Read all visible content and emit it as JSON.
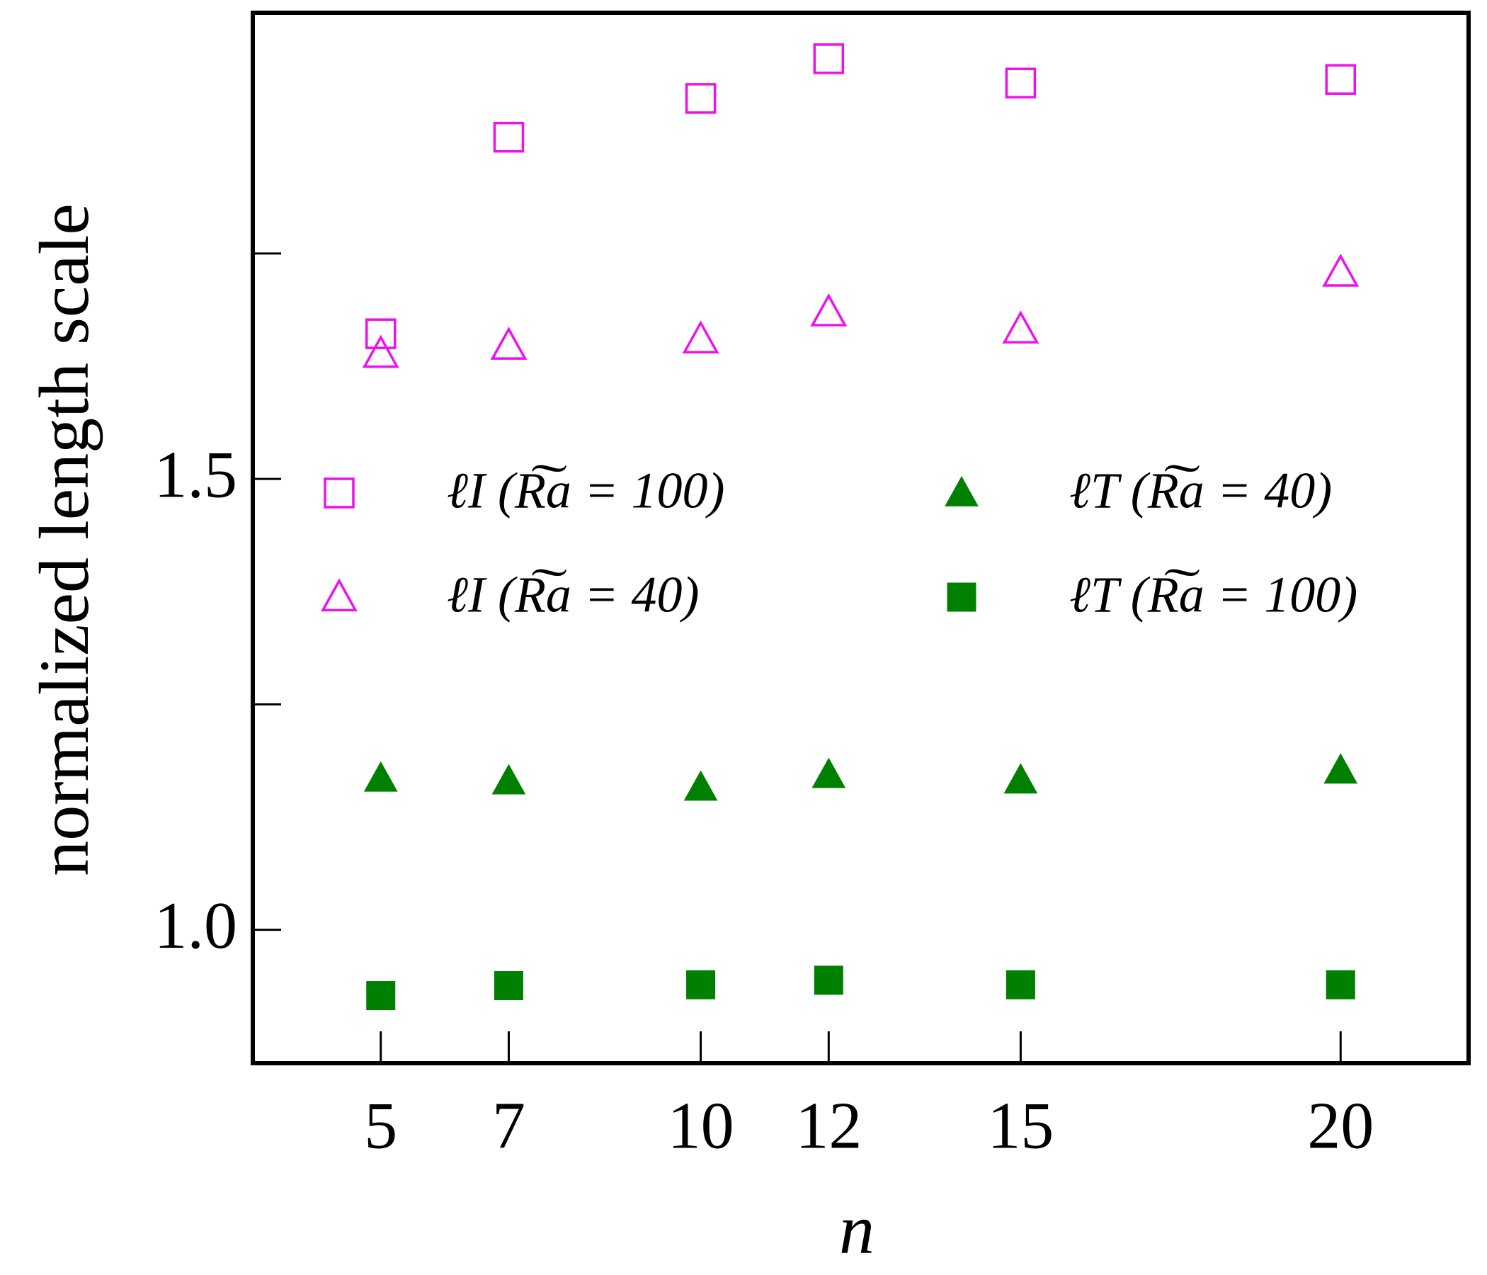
{
  "chart_data": {
    "type": "scatter",
    "x_label": "n",
    "y_label": "normalized length scale",
    "xlim": [
      3,
      22
    ],
    "xticks": [
      5,
      7,
      10,
      12,
      15,
      20
    ],
    "ylim": [
      0.852,
      2.017
    ],
    "yticks": [
      {
        "value": 1,
        "label": "1.0"
      },
      {
        "value": 1.5,
        "label": "1.5"
      }
    ],
    "yminorticks": [
      1.25,
      1.75
    ],
    "legend": "center-left",
    "x": [
      5,
      7,
      10,
      12,
      15,
      20
    ],
    "series": [
      {
        "name": "ℓI (R͠a = 100)",
        "color": "#ee11ee",
        "marker": "square",
        "filled": false,
        "values": [
          1.661,
          1.879,
          1.922,
          1.966,
          1.939,
          1.943
        ]
      },
      {
        "name": "ℓI (R͠a = 40)",
        "color": "#ee11ee",
        "marker": "triangle",
        "filled": false,
        "values": [
          1.639,
          1.648,
          1.655,
          1.685,
          1.666,
          1.729
        ]
      },
      {
        "name": "ℓT (R͠a = 40)",
        "color": "#008000",
        "marker": "triangle",
        "filled": true,
        "values": [
          1.168,
          1.165,
          1.158,
          1.172,
          1.166,
          1.177
        ]
      },
      {
        "name": "ℓT (R͠a = 100)",
        "color": "#008000",
        "marker": "square",
        "filled": true,
        "values": [
          0.927,
          0.938,
          0.939,
          0.944,
          0.939,
          0.939
        ]
      }
    ]
  }
}
